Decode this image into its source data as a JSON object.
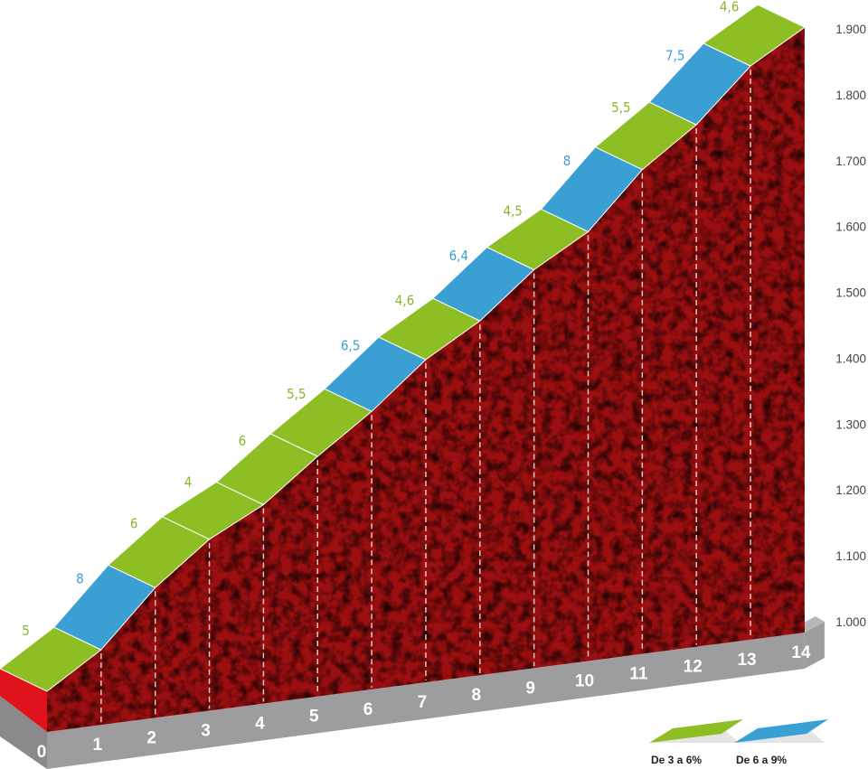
{
  "chart_data": {
    "type": "area",
    "title": "",
    "xlabel": "",
    "ylabel": "",
    "x_ticks": [
      "0",
      "1",
      "2",
      "3",
      "4",
      "5",
      "6",
      "7",
      "8",
      "9",
      "10",
      "11",
      "12",
      "13",
      "14"
    ],
    "y_ticks": [
      "1.000",
      "1.100",
      "1.200",
      "1.300",
      "1.400",
      "1.500",
      "1.600",
      "1.700",
      "1.800",
      "1.900"
    ],
    "y_tick_values": [
      1000,
      1100,
      1200,
      1300,
      1400,
      1500,
      1600,
      1700,
      1800,
      1900
    ],
    "ylim": [
      1000,
      1900
    ],
    "xlim": [
      0,
      14
    ],
    "segments": [
      {
        "km": "0-1",
        "gradient": 5,
        "label": "5",
        "class": "3-6"
      },
      {
        "km": "1-2",
        "gradient": 8,
        "label": "8",
        "class": "6-9"
      },
      {
        "km": "2-3",
        "gradient": 6,
        "label": "6",
        "class": "3-6"
      },
      {
        "km": "3-4",
        "gradient": 4,
        "label": "4",
        "class": "3-6"
      },
      {
        "km": "4-5",
        "gradient": 6,
        "label": "6",
        "class": "3-6"
      },
      {
        "km": "5-6",
        "gradient": 5.5,
        "label": "5,5",
        "class": "3-6"
      },
      {
        "km": "6-7",
        "gradient": 6.5,
        "label": "6,5",
        "class": "6-9"
      },
      {
        "km": "7-8",
        "gradient": 4.6,
        "label": "4,6",
        "class": "3-6"
      },
      {
        "km": "8-9",
        "gradient": 6.4,
        "label": "6,4",
        "class": "6-9"
      },
      {
        "km": "9-10",
        "gradient": 4.5,
        "label": "4,5",
        "class": "3-6"
      },
      {
        "km": "10-11",
        "gradient": 8,
        "label": "8",
        "class": "6-9"
      },
      {
        "km": "11-12",
        "gradient": 5.5,
        "label": "5,5",
        "class": "3-6"
      },
      {
        "km": "12-13",
        "gradient": 7.5,
        "label": "7,5",
        "class": "6-9"
      },
      {
        "km": "13-14",
        "gradient": 4.6,
        "label": "4,6",
        "class": "3-6"
      }
    ],
    "legend": [
      {
        "label": "De 3 a 6%",
        "class": "3-6",
        "color": "#8dbf25"
      },
      {
        "label": "De 6 a 9%",
        "class": "6-9",
        "color": "#3a9fd3"
      }
    ],
    "legend_position": "bottom-right",
    "grid": false
  },
  "colors": {
    "green": "#8dbf25",
    "blue": "#3a9fd3",
    "profile": "#9b0f10",
    "side": "#e0121b",
    "base": "#9d9d9f",
    "grad_green": "#86b82a",
    "grad_blue": "#3a9fd3"
  }
}
